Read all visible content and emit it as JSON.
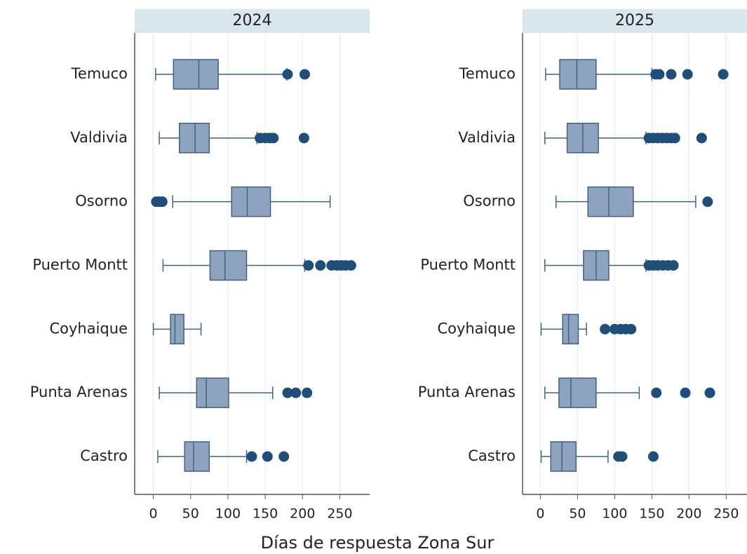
{
  "chart_data": [
    {
      "type": "box",
      "title": "2024",
      "xlabel": "Días de respuesta Zona Sur",
      "categories": [
        "Temuco",
        "Valdivia",
        "Osorno",
        "Puerto Montt",
        "Coyhaique",
        "Punta Arenas",
        "Castro"
      ],
      "boxes": [
        {
          "min": 3,
          "q1": 27,
          "median": 61,
          "q3": 87,
          "max": 179,
          "outliers": [
            180,
            203
          ]
        },
        {
          "min": 8,
          "q1": 35,
          "median": 56,
          "q3": 75,
          "max": 139,
          "outliers": [
            143,
            150,
            156,
            161,
            202
          ]
        },
        {
          "min": 26,
          "q1": 105,
          "median": 126,
          "q3": 157,
          "max": 237,
          "outliers": [
            4,
            8,
            12
          ]
        },
        {
          "min": 13,
          "q1": 76,
          "median": 96,
          "q3": 125,
          "max": 203,
          "outliers": [
            208,
            224,
            239,
            246,
            252,
            258,
            265
          ]
        },
        {
          "min": 0,
          "q1": 23,
          "median": 29,
          "q3": 41,
          "max": 64,
          "outliers": []
        },
        {
          "min": 8,
          "q1": 58,
          "median": 71,
          "q3": 101,
          "max": 160,
          "outliers": [
            180,
            191,
            206
          ]
        },
        {
          "min": 6,
          "q1": 42,
          "median": 54,
          "q3": 75,
          "max": 125,
          "outliers": [
            132,
            153,
            175
          ]
        }
      ],
      "xlim": [
        -25,
        290
      ],
      "xticks": [
        0,
        50,
        100,
        150,
        200,
        250
      ],
      "grid": true,
      "box_color": "#8ea3bd",
      "line_color": "#3f6287",
      "outlier_color": "#1f4e79"
    },
    {
      "type": "box",
      "title": "2025",
      "categories": [
        "Temuco",
        "Valdivia",
        "Osorno",
        "Puerto Montt",
        "Coyhaique",
        "Punta Arenas",
        "Castro"
      ],
      "boxes": [
        {
          "min": 7,
          "q1": 26,
          "median": 49,
          "q3": 75,
          "max": 150,
          "outliers": [
            155,
            160,
            176,
            198,
            246
          ]
        },
        {
          "min": 6,
          "q1": 36,
          "median": 57,
          "q3": 78,
          "max": 142,
          "outliers": [
            146,
            152,
            158,
            164,
            170,
            176,
            181,
            217
          ]
        },
        {
          "min": 21,
          "q1": 64,
          "median": 92,
          "q3": 125,
          "max": 209,
          "outliers": [
            225
          ]
        },
        {
          "min": 6,
          "q1": 58,
          "median": 75,
          "q3": 92,
          "max": 142,
          "outliers": [
            146,
            152,
            158,
            165,
            172,
            179
          ]
        },
        {
          "min": 1,
          "q1": 30,
          "median": 38,
          "q3": 51,
          "max": 62,
          "outliers": [
            87,
            100,
            108,
            115,
            122
          ]
        },
        {
          "min": 6,
          "q1": 25,
          "median": 41,
          "q3": 75,
          "max": 133,
          "outliers": [
            156,
            195,
            228
          ]
        },
        {
          "min": 1,
          "q1": 14,
          "median": 29,
          "q3": 48,
          "max": 91,
          "outliers": [
            105,
            110,
            152
          ]
        }
      ],
      "xlim": [
        -24,
        278
      ],
      "xticks": [
        0,
        50,
        100,
        150,
        200,
        250
      ],
      "grid": true,
      "box_color": "#8ea3bd",
      "line_color": "#3f6287",
      "outlier_color": "#1f4e79"
    }
  ]
}
